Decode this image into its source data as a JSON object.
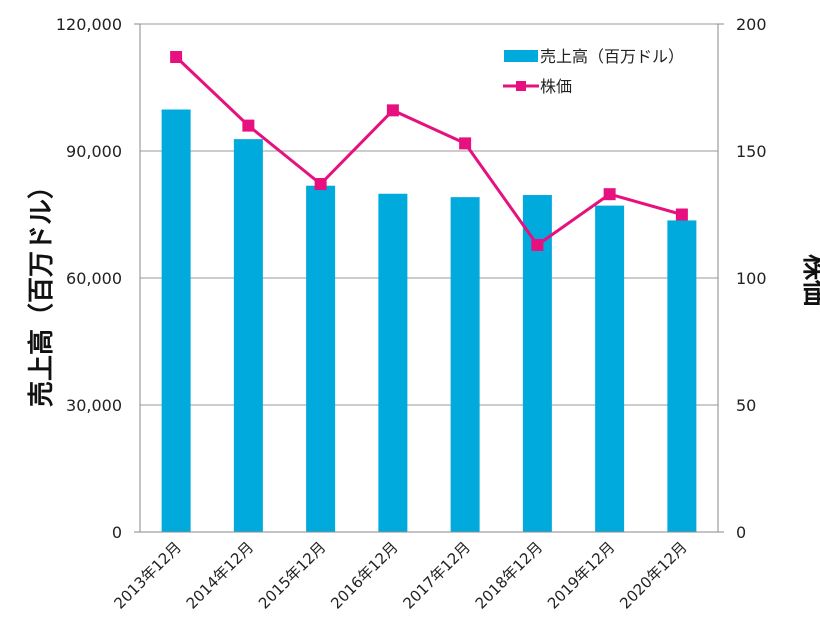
{
  "chart_data": {
    "type": "bar",
    "categories": [
      "2013年12月",
      "2014年12月",
      "2015年12月",
      "2016年12月",
      "2017年12月",
      "2018年12月",
      "2019年12月",
      "2020年12月"
    ],
    "series": [
      {
        "name": "売上高（百万ドル）",
        "type": "bar",
        "axis": "left",
        "color": "#00aadd",
        "values": [
          99800,
          92800,
          81800,
          79900,
          79100,
          79600,
          77100,
          73600
        ]
      },
      {
        "name": "株価",
        "type": "line",
        "axis": "right",
        "color": "#e6117e",
        "values": [
          187,
          160,
          137,
          166,
          153,
          113,
          133,
          125
        ]
      }
    ],
    "ylabel": "売上高（百万ドル）",
    "y2label": "株価",
    "ylim": [
      0,
      120000
    ],
    "y2lim": [
      0,
      200
    ],
    "yticks": [
      "0",
      "30,000",
      "60,000",
      "90,000",
      "120,000"
    ],
    "y2ticks": [
      "0",
      "50",
      "100",
      "150",
      "200"
    ],
    "grid": true,
    "legend": "top-right"
  }
}
